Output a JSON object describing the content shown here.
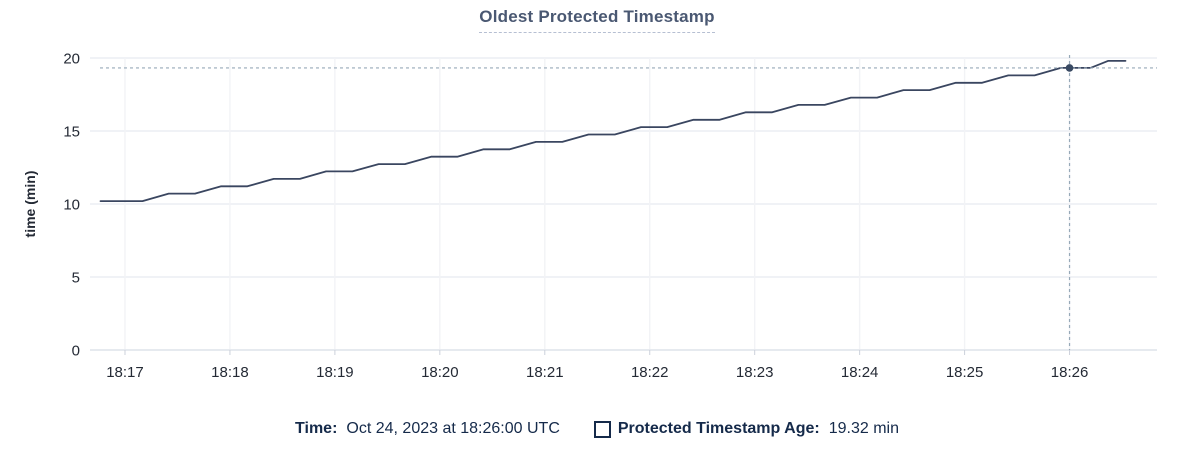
{
  "title": "Oldest Protected Timestamp",
  "y_axis_title": "time (min)",
  "legend": {
    "time_label": "Time:",
    "time_value": "Oct 24, 2023 at 18:26:00 UTC",
    "series_label": "Protected Timestamp Age:",
    "series_value": "19.32 min"
  },
  "colors": {
    "title": "#4a5872",
    "axis_text": "#242a35",
    "legend_text": "#152a4a",
    "series_line": "#3a4660",
    "hover_dot": "#394a63",
    "crosshair": "#97a9b8",
    "grid_horizontal": "#eceef3",
    "grid_vertical": "#f2f3f6",
    "axis_line": "#e2e5ec",
    "tick_mark": "#ccd1db",
    "background": "#ffffff"
  },
  "chart_data": {
    "type": "line",
    "title": "Oldest Protected Timestamp",
    "xlabel": "",
    "ylabel": "time (min)",
    "ylim": [
      0,
      20
    ],
    "y_ticks": [
      0,
      5,
      10,
      15,
      20
    ],
    "x_ticks": [
      "18:17",
      "18:18",
      "18:19",
      "18:20",
      "18:21",
      "18:22",
      "18:23",
      "18:24",
      "18:25",
      "18:26"
    ],
    "xlim": [
      "18:16:40",
      "18:26:50"
    ],
    "grid": true,
    "legend_position": "bottom",
    "series": [
      {
        "name": "Protected Timestamp Age",
        "unit": "min",
        "points": [
          [
            "18:16:46",
            10.2
          ],
          [
            "18:17:10",
            10.2
          ],
          [
            "18:17:25",
            10.71
          ],
          [
            "18:17:40",
            10.71
          ],
          [
            "18:17:55",
            11.21
          ],
          [
            "18:18:10",
            11.21
          ],
          [
            "18:18:25",
            11.72
          ],
          [
            "18:18:40",
            11.72
          ],
          [
            "18:18:55",
            12.23
          ],
          [
            "18:19:10",
            12.23
          ],
          [
            "18:19:25",
            12.73
          ],
          [
            "18:19:40",
            12.73
          ],
          [
            "18:19:55",
            13.24
          ],
          [
            "18:20:10",
            13.24
          ],
          [
            "18:20:25",
            13.75
          ],
          [
            "18:20:40",
            13.75
          ],
          [
            "18:20:55",
            14.25
          ],
          [
            "18:21:10",
            14.25
          ],
          [
            "18:21:25",
            14.76
          ],
          [
            "18:21:40",
            14.76
          ],
          [
            "18:21:55",
            15.27
          ],
          [
            "18:22:10",
            15.27
          ],
          [
            "18:22:25",
            15.77
          ],
          [
            "18:22:40",
            15.77
          ],
          [
            "18:22:55",
            16.28
          ],
          [
            "18:23:10",
            16.28
          ],
          [
            "18:23:25",
            16.79
          ],
          [
            "18:23:40",
            16.79
          ],
          [
            "18:23:55",
            17.29
          ],
          [
            "18:24:10",
            17.29
          ],
          [
            "18:24:25",
            17.8
          ],
          [
            "18:24:40",
            17.8
          ],
          [
            "18:24:55",
            18.3
          ],
          [
            "18:25:10",
            18.3
          ],
          [
            "18:25:25",
            18.81
          ],
          [
            "18:25:40",
            18.81
          ],
          [
            "18:25:55",
            19.32
          ],
          [
            "18:26:12",
            19.32
          ],
          [
            "18:26:22",
            19.8
          ],
          [
            "18:26:32",
            19.8
          ]
        ]
      }
    ],
    "hover": {
      "time": "18:26:00",
      "time_label": "Oct 24, 2023 at 18:26:00 UTC",
      "value": 19.32,
      "value_label": "19.32 min"
    }
  }
}
